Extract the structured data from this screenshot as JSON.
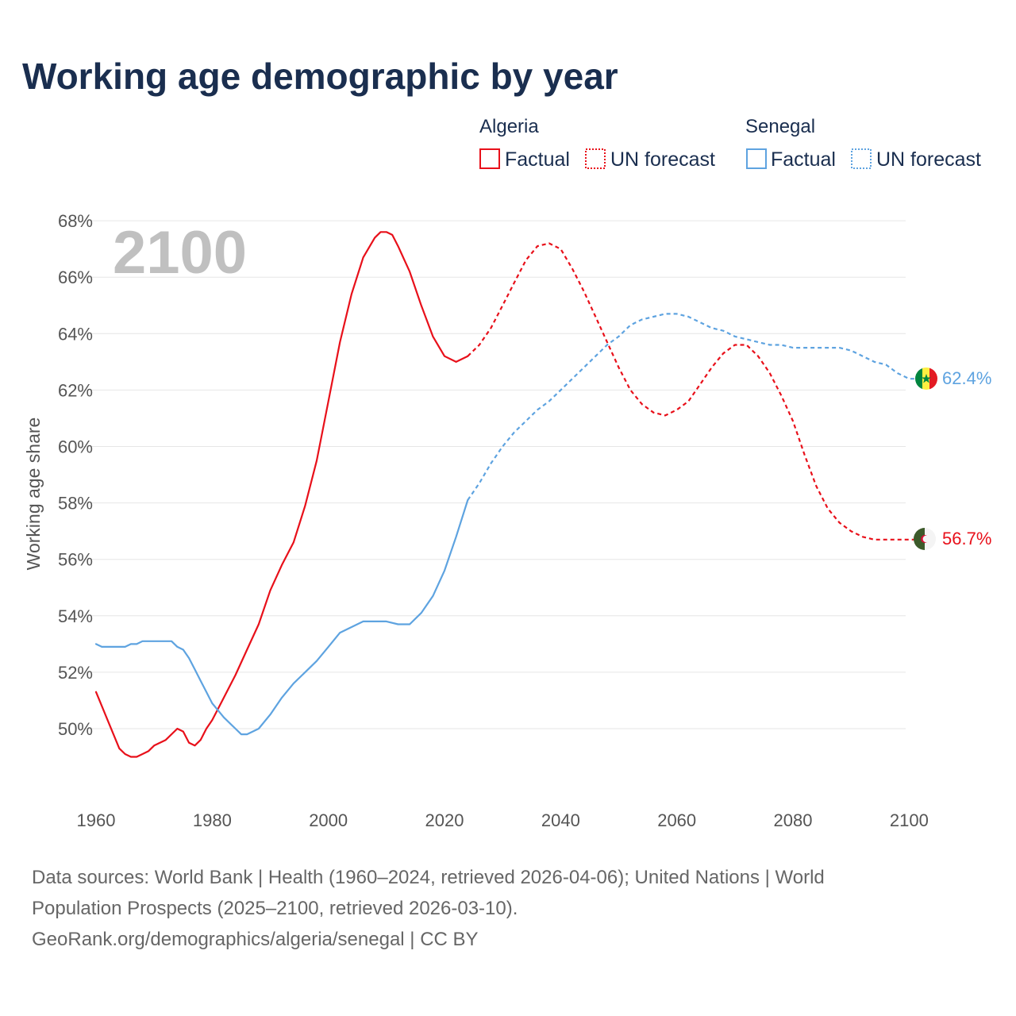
{
  "chart_data": {
    "type": "line",
    "title": "Working age demographic by year",
    "year_marker": "2100",
    "ylabel": "Working age share",
    "xlabel": "",
    "xlim": [
      1960,
      2102
    ],
    "ylim": [
      47.5,
      68.5
    ],
    "x_ticks": [
      "1960",
      "1980",
      "2000",
      "2020",
      "2040",
      "2060",
      "2080",
      "2100"
    ],
    "y_ticks": [
      "50%",
      "52%",
      "54%",
      "56%",
      "58%",
      "60%",
      "62%",
      "64%",
      "66%",
      "68%"
    ],
    "legend": {
      "groups": [
        {
          "name": "Algeria",
          "factual_label": "Factual",
          "forecast_label": "UN forecast",
          "color": "#e8101a"
        },
        {
          "name": "Senegal",
          "factual_label": "Factual",
          "forecast_label": "UN forecast",
          "color": "#5ea3e0"
        }
      ]
    },
    "series": [
      {
        "name": "Algeria",
        "color": "#e8101a",
        "end_label": "56.7%",
        "factual": {
          "x": [
            1960,
            1962,
            1964,
            1965,
            1966,
            1967,
            1968,
            1969,
            1970,
            1972,
            1974,
            1975,
            1976,
            1977,
            1978,
            1979,
            1980,
            1982,
            1984,
            1986,
            1988,
            1990,
            1992,
            1994,
            1996,
            1998,
            2000,
            2002,
            2004,
            2006,
            2008,
            2009,
            2010,
            2011,
            2012,
            2014,
            2016,
            2018,
            2020,
            2022,
            2024
          ],
          "y": [
            51.3,
            50.3,
            49.3,
            49.1,
            49.0,
            49.0,
            49.1,
            49.2,
            49.4,
            49.6,
            50.0,
            49.9,
            49.5,
            49.4,
            49.6,
            50.0,
            50.3,
            51.1,
            51.9,
            52.8,
            53.7,
            54.9,
            55.8,
            56.6,
            57.9,
            59.5,
            61.6,
            63.7,
            65.4,
            66.7,
            67.4,
            67.6,
            67.6,
            67.5,
            67.1,
            66.2,
            65.0,
            63.9,
            63.2,
            63.0,
            63.2
          ]
        },
        "forecast": {
          "x": [
            2024,
            2026,
            2028,
            2030,
            2032,
            2034,
            2036,
            2038,
            2040,
            2042,
            2044,
            2046,
            2048,
            2050,
            2052,
            2054,
            2056,
            2058,
            2060,
            2062,
            2064,
            2066,
            2068,
            2070,
            2072,
            2074,
            2076,
            2078,
            2080,
            2082,
            2084,
            2086,
            2088,
            2090,
            2092,
            2094,
            2096,
            2098,
            2100,
            2102
          ],
          "y": [
            63.2,
            63.6,
            64.2,
            65.0,
            65.8,
            66.6,
            67.1,
            67.2,
            67.0,
            66.3,
            65.5,
            64.6,
            63.7,
            62.8,
            62.0,
            61.5,
            61.2,
            61.1,
            61.3,
            61.6,
            62.2,
            62.8,
            63.3,
            63.6,
            63.6,
            63.2,
            62.6,
            61.8,
            60.9,
            59.7,
            58.6,
            57.8,
            57.3,
            57.0,
            56.8,
            56.7,
            56.7,
            56.7,
            56.7,
            56.7
          ]
        }
      },
      {
        "name": "Senegal",
        "color": "#5ea3e0",
        "end_label": "62.4%",
        "factual": {
          "x": [
            1960,
            1961,
            1962,
            1964,
            1965,
            1966,
            1967,
            1968,
            1969,
            1970,
            1972,
            1973,
            1974,
            1975,
            1976,
            1977,
            1978,
            1979,
            1980,
            1982,
            1984,
            1985,
            1986,
            1988,
            1990,
            1992,
            1994,
            1996,
            1998,
            2000,
            2002,
            2004,
            2006,
            2008,
            2010,
            2012,
            2014,
            2016,
            2018,
            2020,
            2022,
            2024
          ],
          "y": [
            53.0,
            52.9,
            52.9,
            52.9,
            52.9,
            53.0,
            53.0,
            53.1,
            53.1,
            53.1,
            53.1,
            53.1,
            52.9,
            52.8,
            52.5,
            52.1,
            51.7,
            51.3,
            50.9,
            50.4,
            50.0,
            49.8,
            49.8,
            50.0,
            50.5,
            51.1,
            51.6,
            52.0,
            52.4,
            52.9,
            53.4,
            53.6,
            53.8,
            53.8,
            53.8,
            53.7,
            53.7,
            54.1,
            54.7,
            55.6,
            56.8,
            58.1
          ]
        },
        "forecast": {
          "x": [
            2024,
            2026,
            2028,
            2030,
            2032,
            2034,
            2036,
            2038,
            2040,
            2042,
            2044,
            2046,
            2048,
            2050,
            2052,
            2054,
            2056,
            2058,
            2060,
            2062,
            2064,
            2066,
            2068,
            2070,
            2072,
            2074,
            2076,
            2078,
            2080,
            2082,
            2084,
            2086,
            2088,
            2090,
            2092,
            2094,
            2096,
            2098,
            2100,
            2102
          ],
          "y": [
            58.1,
            58.7,
            59.4,
            60.0,
            60.5,
            60.9,
            61.3,
            61.6,
            62.0,
            62.4,
            62.8,
            63.2,
            63.6,
            63.9,
            64.3,
            64.5,
            64.6,
            64.7,
            64.7,
            64.6,
            64.4,
            64.2,
            64.1,
            63.9,
            63.8,
            63.7,
            63.6,
            63.6,
            63.5,
            63.5,
            63.5,
            63.5,
            63.5,
            63.4,
            63.2,
            63.0,
            62.9,
            62.6,
            62.4,
            62.4
          ]
        }
      }
    ],
    "footer": {
      "line1": "Data sources: World Bank | Health (1960–2024, retrieved 2026-04-06); United Nations | World",
      "line2": "Population Prospects (2025–2100, retrieved 2026-03-10).",
      "line3": "GeoRank.org/demographics/algeria/senegal | CC BY"
    }
  }
}
